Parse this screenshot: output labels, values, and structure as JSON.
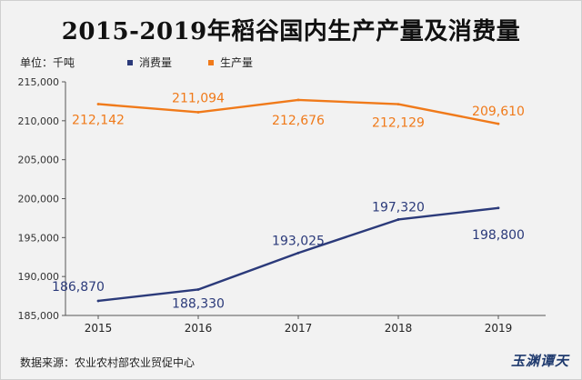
{
  "chart_data": {
    "type": "line",
    "title": "2015-2019年稻谷国内生产产量及消费量",
    "unit_label": "单位：千吨",
    "categories": [
      "2015",
      "2016",
      "2017",
      "2018",
      "2019"
    ],
    "series": [
      {
        "name": "消费量",
        "color": "#2b3a7a",
        "values": [
          186870,
          188330,
          193025,
          197320,
          198800
        ],
        "labels": [
          "186,870",
          "188,330",
          "193,025",
          "197,320",
          "198,800"
        ]
      },
      {
        "name": "生产量",
        "color": "#f07a1a",
        "values": [
          212142,
          211094,
          212676,
          212129,
          209610
        ],
        "labels": [
          "212,142",
          "211,094",
          "212,676",
          "212,129",
          "209,610"
        ]
      }
    ],
    "ylim": [
      185000,
      215000
    ],
    "yticks": [
      "185,000",
      "190,000",
      "195,000",
      "200,000",
      "205,000",
      "210,000",
      "215,000"
    ],
    "grid": false,
    "legend": "top-left",
    "source": "数据来源：农业农村部农业贸促中心"
  },
  "brand": "玉渊谭天"
}
